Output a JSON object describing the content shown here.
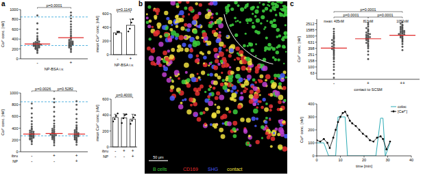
{
  "panel_labels": [
    "a",
    "b",
    "c"
  ],
  "image": {
    "legend": [
      {
        "label": "B cells",
        "color": "#3ccc3c"
      },
      {
        "label": "CD169",
        "color": "#e83030"
      },
      {
        "label": "SHG",
        "color": "#4a5cff"
      },
      {
        "label": "contact",
        "color": "#f0e040"
      }
    ],
    "scale_bar": "50 µm"
  },
  "chart_data": [
    {
      "type": "strip",
      "ylabel": "Ca²⁺ conc. [nM]",
      "color": "#555555",
      "category_rows": [
        {
          "label": "NP-BSA i.v.",
          "values": [
            "-",
            "+"
          ]
        }
      ],
      "values": [
        [
          120,
          160,
          180,
          200,
          210,
          220,
          230,
          240,
          250,
          255,
          260,
          270,
          275,
          280,
          285,
          290,
          300,
          305,
          310,
          320,
          330,
          340,
          350,
          370,
          390,
          420,
          460,
          520,
          600,
          720,
          880
        ],
        [
          140,
          180,
          210,
          230,
          250,
          260,
          270,
          280,
          290,
          300,
          310,
          320,
          330,
          340,
          350,
          360,
          380,
          400,
          420,
          450,
          480,
          520,
          560,
          600,
          650,
          700,
          760,
          820,
          880,
          940
        ]
      ],
      "means": [
        300,
        430
      ],
      "reference_lines": [
        850,
        270
      ],
      "ylim": [
        0,
        1000
      ],
      "yticks": [
        0,
        200,
        400,
        600,
        800,
        1000
      ],
      "annotations": [
        {
          "text": "p=0.0001",
          "from": 0,
          "to": 1
        }
      ]
    },
    {
      "type": "bar",
      "ylabel": "mean Ca²⁺ conc. [nM]",
      "color": "#ffffff",
      "category_rows": [
        {
          "label": "NP-BSA i.v.",
          "values": [
            "-",
            "+"
          ]
        }
      ],
      "values": [
        320,
        430
      ],
      "errors": [
        25,
        90
      ],
      "points": [
        [
          300,
          330,
          335
        ],
        [
          340,
          380,
          470,
          520
        ]
      ],
      "ylim": [
        0,
        600
      ],
      "yticks": [
        0,
        200,
        400,
        600
      ],
      "annotations": [
        {
          "text": "p=0.1143",
          "from": 0,
          "to": 1
        }
      ]
    },
    {
      "type": "strip",
      "ylabel": "Ca²⁺ conc. [nM]",
      "color": "#555555",
      "category_rows": [
        {
          "label": "ibru",
          "values": [
            "-",
            "+",
            "+"
          ]
        },
        {
          "label": "NP",
          "values": [
            "-",
            "-",
            "+"
          ]
        }
      ],
      "values": [
        [
          130,
          170,
          190,
          210,
          220,
          230,
          240,
          250,
          260,
          265,
          270,
          280,
          290,
          295,
          300,
          310,
          320,
          330,
          340,
          350,
          360,
          380,
          400,
          430,
          470,
          520,
          580,
          650,
          740,
          820
        ],
        [
          110,
          150,
          180,
          200,
          215,
          225,
          240,
          250,
          260,
          270,
          280,
          285,
          290,
          300,
          310,
          320,
          330,
          345,
          360,
          375,
          390,
          410,
          440,
          480,
          530,
          600,
          680,
          760,
          840,
          900
        ],
        [
          120,
          160,
          185,
          200,
          210,
          220,
          235,
          245,
          255,
          265,
          275,
          280,
          290,
          300,
          305,
          315,
          325,
          335,
          350,
          365,
          380,
          400,
          420,
          450,
          500,
          560,
          640,
          720,
          800,
          860
        ]
      ],
      "means": [
        300,
        310,
        300
      ],
      "reference_lines": [
        850,
        270
      ],
      "ylim": [
        0,
        1000
      ],
      "yticks": [
        0,
        200,
        400,
        600,
        800,
        1000
      ],
      "annotations": [
        {
          "text": "p=0.0026",
          "from": 0,
          "to": 1
        },
        {
          "text": "p=0.5282",
          "from": 1,
          "to": 2
        }
      ]
    },
    {
      "type": "bar",
      "ylabel": "mean Ca²⁺ conc. [nM]",
      "color": "#ffffff",
      "category_rows": [
        {
          "label": "ibru",
          "values": [
            "-",
            "+",
            "+"
          ]
        },
        {
          "label": "NP",
          "values": [
            "-",
            "-",
            "+"
          ]
        }
      ],
      "values": [
        370,
        365,
        350
      ],
      "errors": [
        40,
        50,
        60
      ],
      "points": [
        [
          320,
          350,
          390,
          420
        ],
        [
          300,
          360,
          400,
          410
        ],
        [
          290,
          330,
          370,
          400
        ]
      ],
      "ylim": [
        0,
        600
      ],
      "yticks": [
        0,
        200,
        400,
        600
      ],
      "annotations": [
        {
          "text": "p=0.4000",
          "from": 0,
          "to": 2
        }
      ]
    },
    {
      "type": "strip",
      "ylabel": "Ca²⁺ conc. [nM]",
      "color": "#555555",
      "log": "y",
      "category_rows": [
        {
          "label": "contact to SCSM",
          "values": [
            "-",
            "+",
            "++"
          ]
        }
      ],
      "values": [
        [
          45,
          60,
          80,
          100,
          120,
          150,
          180,
          200,
          230,
          260,
          290,
          320,
          350,
          380,
          400,
          430,
          460,
          500,
          540,
          580,
          630,
          680,
          740,
          800,
          880,
          950,
          1050,
          1200,
          1400,
          1700
        ],
        [
          180,
          250,
          320,
          400,
          450,
          500,
          560,
          600,
          650,
          700,
          740,
          780,
          820,
          850,
          880,
          920,
          960,
          1000,
          1050,
          1100,
          1150,
          1200,
          1300,
          1400,
          1500,
          1650,
          1800,
          2000,
          2300,
          2600
        ],
        [
          350,
          450,
          550,
          650,
          720,
          800,
          850,
          900,
          950,
          1000,
          1050,
          1080,
          1120,
          1160,
          1200,
          1250,
          1300,
          1350,
          1400,
          1450,
          1500,
          1600,
          1700,
          1800,
          1900,
          2000,
          2150,
          2300,
          2500,
          2800
        ]
      ],
      "means": [
        405,
        813,
        1057
      ],
      "mean_labels": [
        "mean: 405nM",
        "813nM",
        "1057nM"
      ],
      "ylim": [
        40,
        3500
      ],
      "yticks": [
        63,
        100,
        158,
        251,
        398,
        631,
        1000,
        1585,
        2512
      ],
      "annotations": [
        {
          "text": "p=0.0001",
          "from": 0,
          "to": 2
        },
        {
          "text": "p=0.0001",
          "from": 0,
          "to": 1
        },
        {
          "text": "p=0.0001",
          "from": 1,
          "to": 2
        }
      ]
    },
    {
      "type": "line",
      "xlabel": "time [min]",
      "ylabel": "Ca²⁺ conc. [nM]",
      "legend": "upper right",
      "xlim": [
        0,
        40
      ],
      "xticks": [
        0,
        10,
        20,
        30,
        40
      ],
      "ylim": [
        0,
        400
      ],
      "yticks": [
        0,
        100,
        200,
        300,
        400
      ],
      "series": [
        {
          "name": "coloc",
          "color": "#2aaab4",
          "x": [
            0,
            3,
            5,
            8,
            9,
            12,
            13,
            18,
            25,
            27,
            28,
            29,
            31
          ],
          "values": [
            100,
            100,
            0,
            0,
            300,
            300,
            0,
            0,
            0,
            290,
            290,
            0,
            100
          ]
        },
        {
          "name": "[Ca²⁺]",
          "color": "#000000",
          "marker": "circle",
          "x": [
            0,
            1.5,
            3,
            4.5,
            5.5,
            7,
            8,
            9,
            10,
            11,
            12,
            13,
            14,
            15,
            16.5,
            18,
            19.5,
            21,
            22.5,
            24,
            25.5,
            27,
            28,
            29.5,
            31
          ],
          "values": [
            120,
            110,
            130,
            100,
            60,
            140,
            200,
            260,
            300,
            330,
            340,
            310,
            270,
            250,
            230,
            200,
            170,
            150,
            120,
            110,
            140,
            150,
            130,
            50,
            110
          ]
        }
      ]
    }
  ]
}
